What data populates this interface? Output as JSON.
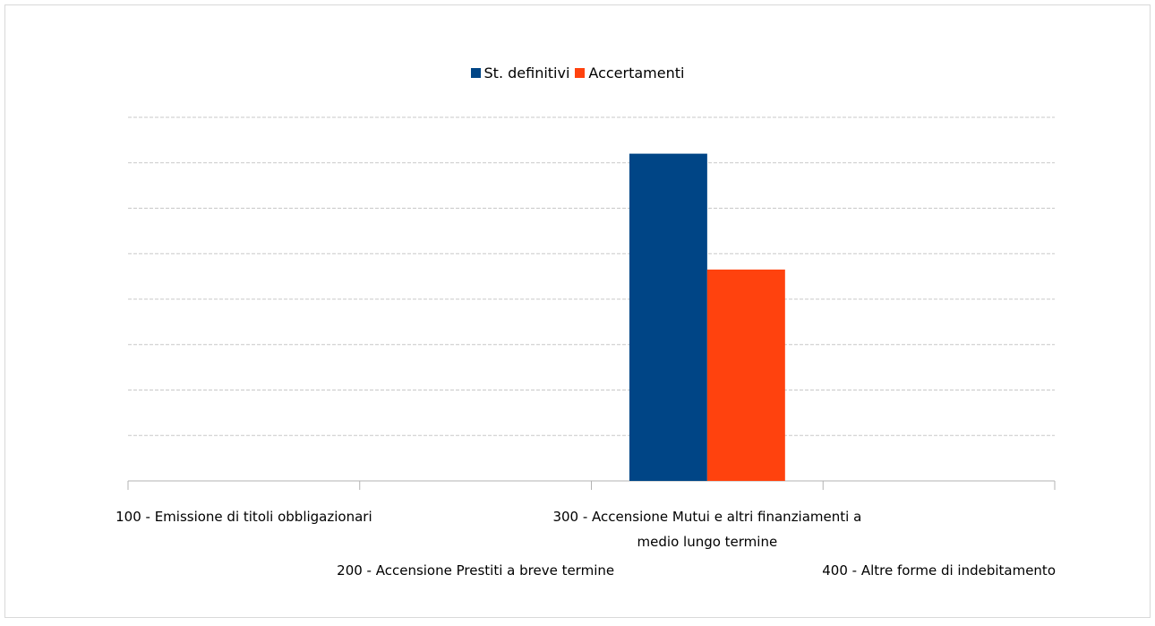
{
  "chart_data": {
    "type": "bar",
    "categories": [
      "100 - Emissione di titoli obbligazionari",
      "200 - Accensione Prestiti a breve termine",
      "300 - Accensione Mutui e altri finanziamenti a medio lungo termine",
      "400 - Altre forme di indebitamento"
    ],
    "series": [
      {
        "name": "St. definitivi",
        "color": "#004586",
        "values": [
          0,
          0,
          7.2,
          0
        ]
      },
      {
        "name": "Accertamenti",
        "color": "#ff420e",
        "values": [
          0,
          0,
          4.65,
          0
        ]
      }
    ],
    "ylim": [
      0,
      8
    ],
    "yticks": [
      0,
      1,
      2,
      3,
      4,
      5,
      6,
      7,
      8
    ],
    "grid": true,
    "legend": "top"
  }
}
